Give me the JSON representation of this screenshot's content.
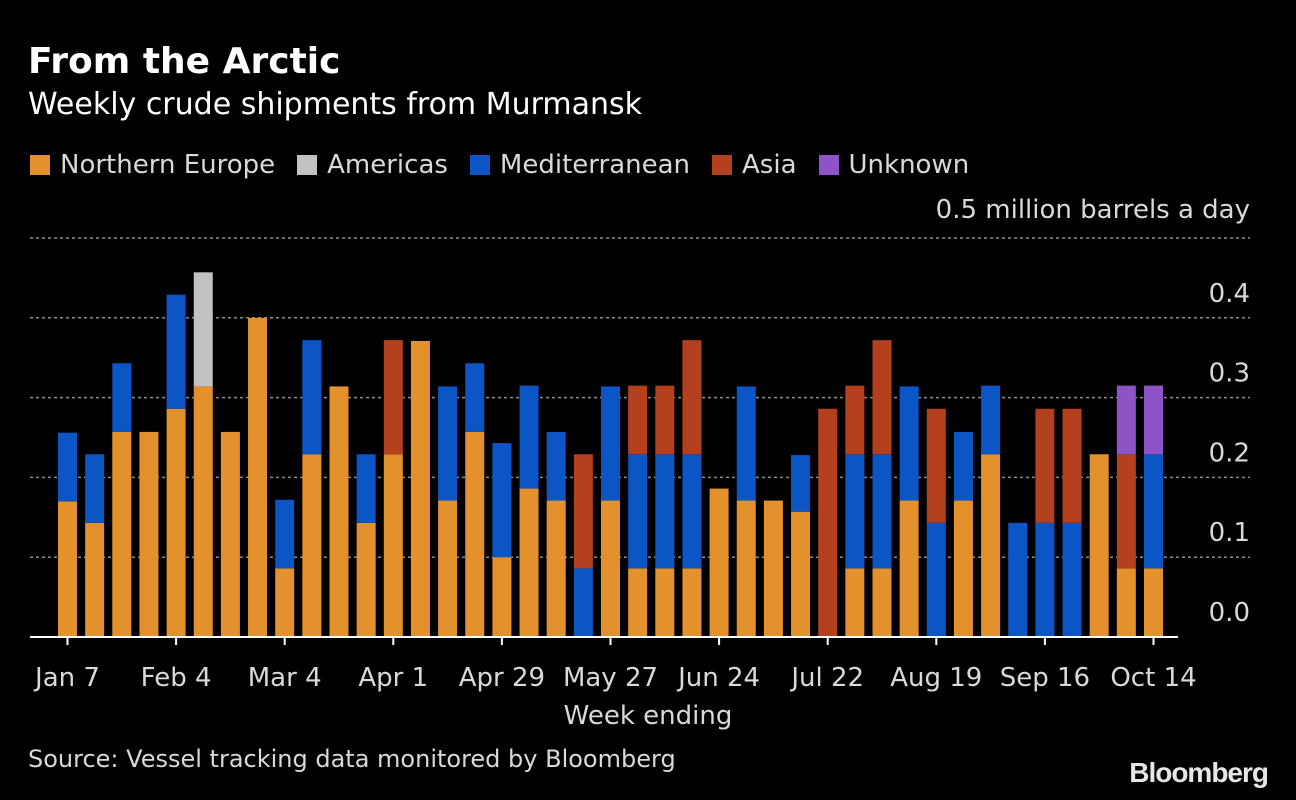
{
  "chart_data": {
    "type": "bar",
    "stacked": true,
    "title": "From the Arctic",
    "subtitle": "Weekly crude shipments from Murmansk",
    "unit_label": "0.5 million barrels a day",
    "xlabel": "Week ending",
    "ylim": [
      0,
      0.5
    ],
    "y_ticks": [
      "0.0",
      "0.1",
      "0.2",
      "0.3",
      "0.4"
    ],
    "x_tick_labels": [
      "Jan 7",
      "Feb 4",
      "Mar 4",
      "Apr 1",
      "Apr 29",
      "May 27",
      "Jun 24",
      "Jul 22",
      "Aug 19",
      "Sep 16",
      "Oct 14"
    ],
    "x_tick_every": 4,
    "grid": true,
    "legend_position": "top",
    "series": [
      {
        "name": "Northern Europe",
        "color": "#e3912d",
        "values": [
          0.17,
          0.143,
          0.257,
          0.257,
          0.286,
          0.314,
          0.257,
          0.4,
          0.086,
          0.229,
          0.314,
          0.143,
          0.229,
          0.371,
          0.171,
          0.257,
          0.1,
          0.186,
          0.171,
          0,
          0.171,
          0.086,
          0.086,
          0.086,
          0.186,
          0.171,
          0.171,
          0.157,
          0,
          0.086,
          0.086,
          0.171,
          0,
          0.171,
          0.229,
          0,
          0,
          0,
          0.229,
          0.086,
          0.086
        ]
      },
      {
        "name": "Americas",
        "color": "#c2c2c2",
        "values": [
          0,
          0,
          0,
          0,
          0,
          0.143,
          0,
          0,
          0,
          0,
          0,
          0,
          0,
          0,
          0,
          0,
          0,
          0,
          0,
          0,
          0,
          0,
          0,
          0,
          0,
          0,
          0,
          0,
          0,
          0,
          0,
          0,
          0,
          0,
          0,
          0,
          0,
          0,
          0,
          0,
          0
        ]
      },
      {
        "name": "Mediterranean",
        "color": "#0c55c5",
        "values": [
          0.086,
          0.086,
          0.086,
          0,
          0.143,
          0,
          0,
          0,
          0.086,
          0.143,
          0,
          0.086,
          0,
          0,
          0.143,
          0.086,
          0.143,
          0.129,
          0.086,
          0.086,
          0.143,
          0.143,
          0.143,
          0.143,
          0,
          0.143,
          0,
          0.071,
          0,
          0.143,
          0.143,
          0.143,
          0.143,
          0.086,
          0.086,
          0.143,
          0.143,
          0.143,
          0,
          0,
          0.143
        ]
      },
      {
        "name": "Asia",
        "color": "#b5401e",
        "values": [
          0,
          0,
          0,
          0,
          0,
          0,
          0,
          0,
          0,
          0,
          0,
          0,
          0.143,
          0,
          0,
          0,
          0,
          0,
          0,
          0.143,
          0,
          0.086,
          0.086,
          0.143,
          0,
          0,
          0,
          0,
          0.286,
          0.086,
          0.143,
          0,
          0.143,
          0,
          0,
          0,
          0.143,
          0.143,
          0,
          0.143,
          0
        ]
      },
      {
        "name": "Unknown",
        "color": "#8d53c7",
        "values": [
          0,
          0,
          0,
          0,
          0,
          0,
          0,
          0,
          0,
          0,
          0,
          0,
          0,
          0,
          0,
          0,
          0,
          0,
          0,
          0,
          0,
          0,
          0,
          0,
          0,
          0,
          0,
          0,
          0,
          0,
          0,
          0,
          0,
          0,
          0,
          0,
          0,
          0,
          0,
          0.086,
          0.086
        ]
      }
    ]
  },
  "footer": {
    "source": "Source: Vessel tracking data monitored by Bloomberg",
    "logo": "Bloomberg"
  },
  "colors": {
    "background": "#000000",
    "grid": "#8c8c8c",
    "text": "#d9d9d9"
  }
}
